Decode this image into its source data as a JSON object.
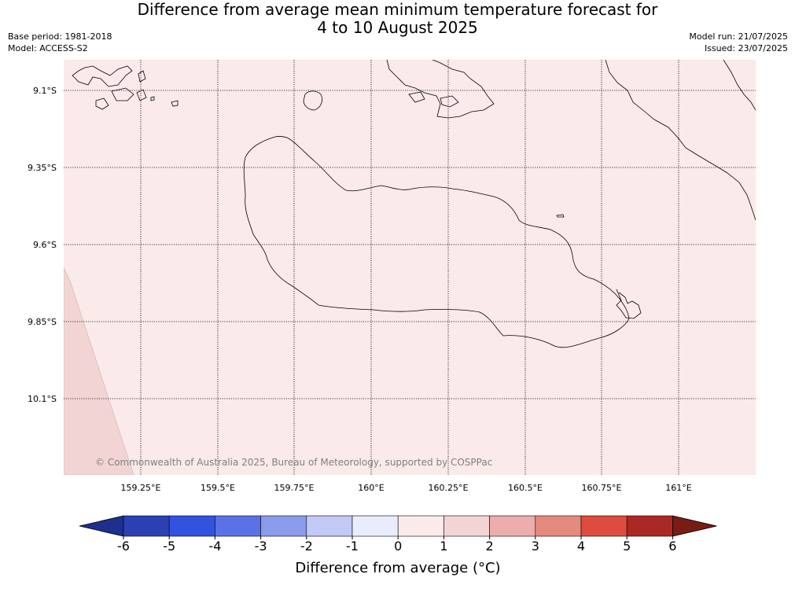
{
  "header": {
    "title_line1": "Difference from average mean minimum temperature forecast for",
    "title_line2": "4 to 10 August 2025",
    "base_period": "Base period: 1981-2018",
    "model": "Model: ACCESS-S2",
    "model_run": "Model run: 21/07/2025",
    "issued": "Issued: 23/07/2025"
  },
  "map": {
    "lon_labels": [
      "159.25°E",
      "159.5°E",
      "159.75°E",
      "160°E",
      "160.25°E",
      "160.5°E",
      "160.75°E",
      "161°E"
    ],
    "lat_labels": [
      "9.1°S",
      "9.35°S",
      "9.6°S",
      "9.85°S",
      "10.1°S"
    ],
    "copyright": "© Commonwealth of Australia 2025, Bureau of Meteorology, supported by COSPPac",
    "fill_main": "#fbeaea",
    "fill_warmer": "#f3d4d4"
  },
  "colorbar": {
    "title": "Difference from average (°C)",
    "tick_labels": [
      "-6",
      "-5",
      "-4",
      "-3",
      "-2",
      "-1",
      "0",
      "1",
      "2",
      "3",
      "4",
      "5",
      "6"
    ],
    "colors": [
      "#1f2f8f",
      "#2b41b3",
      "#3252e0",
      "#5a72e6",
      "#8a9bec",
      "#c1c9f4",
      "#e8ecfb",
      "#fbeaea",
      "#f3d4d4",
      "#edadad",
      "#e58a7f",
      "#dd4c3e",
      "#ab2924",
      "#7a1c16"
    ]
  }
}
